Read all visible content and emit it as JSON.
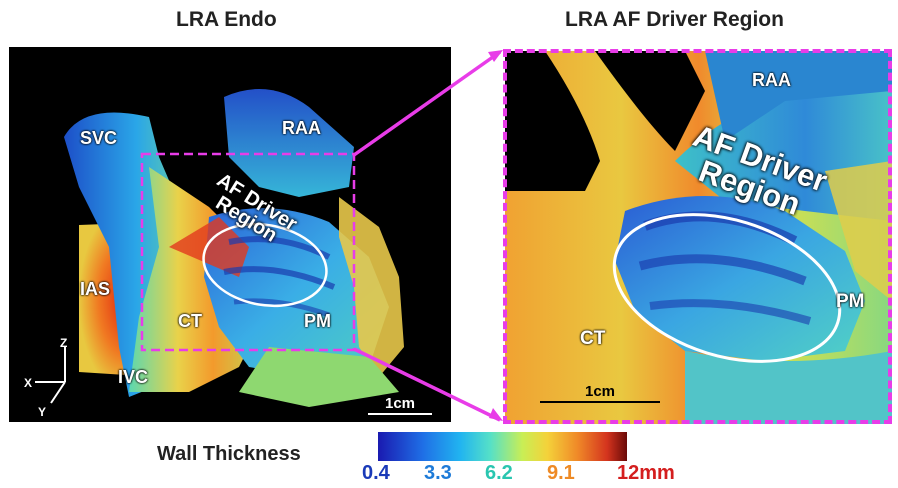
{
  "titles": {
    "left": "LRA Endo",
    "right": "LRA AF Driver Region"
  },
  "left_labels": {
    "svc": "SVC",
    "raa": "RAA",
    "ias": "IAS",
    "ct": "CT",
    "pm": "PM",
    "ivc": "IVC"
  },
  "left_driver": [
    "AF Driver",
    "Region"
  ],
  "right_labels": {
    "raa": "RAA",
    "ct": "CT",
    "pm": "PM"
  },
  "right_driver": [
    "AF Driver",
    "Region"
  ],
  "axes": {
    "z": "Z",
    "x": "X",
    "y": "Y"
  },
  "scale": {
    "left": "1cm",
    "right": "1cm"
  },
  "legend": {
    "title": "Wall Thickness",
    "ticks": [
      {
        "label": "0.4",
        "color": "#1a3ab8"
      },
      {
        "label": "3.3",
        "color": "#1e7bd8"
      },
      {
        "label": "6.2",
        "color": "#29c6b0"
      },
      {
        "label": "9.1",
        "color": "#ee8a25"
      },
      {
        "label": "12mm",
        "color": "#d41e1e"
      }
    ]
  },
  "colors": {
    "highlight": "#e83ce8",
    "background": "#000000"
  }
}
